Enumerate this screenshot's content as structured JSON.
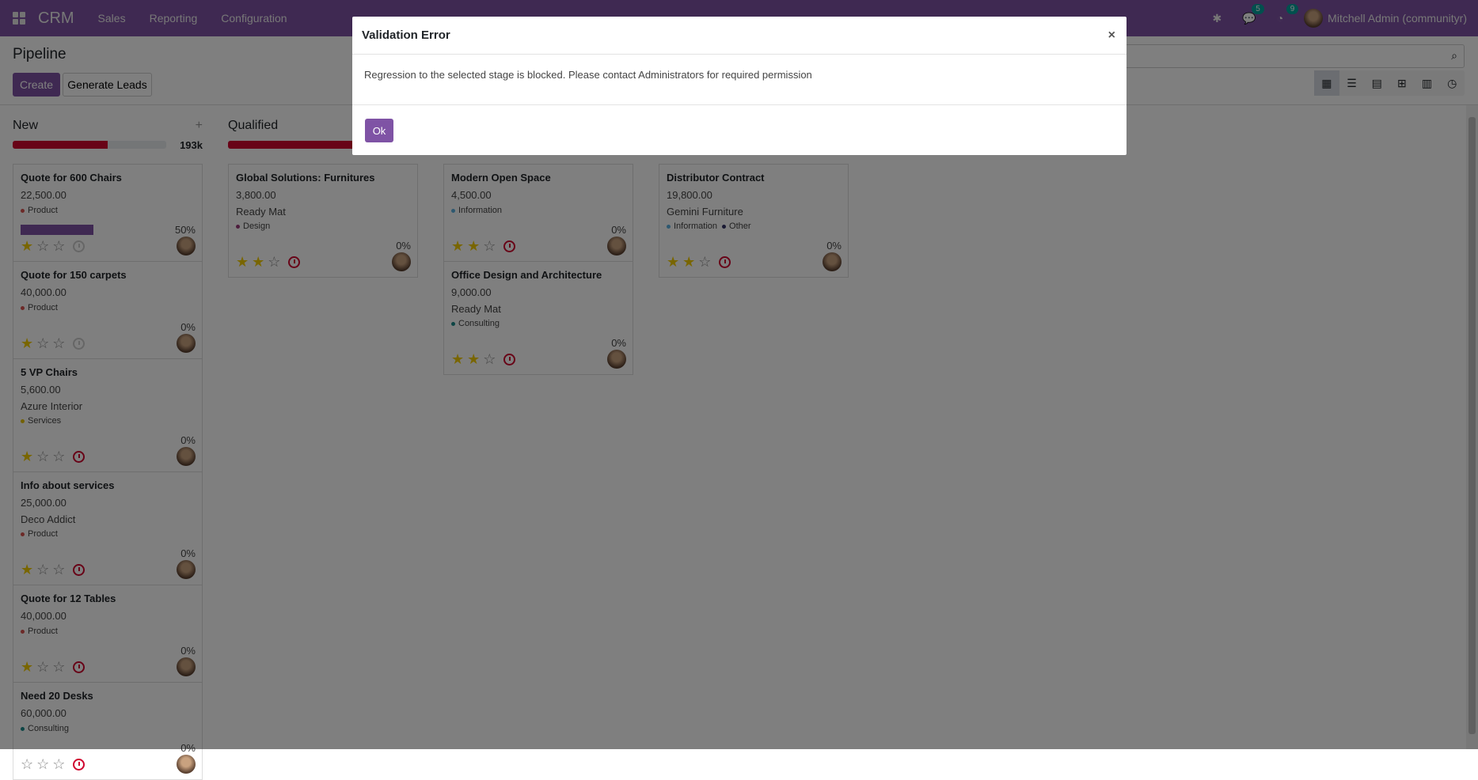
{
  "navbar": {
    "app": "CRM",
    "menus": [
      "Sales",
      "Reporting",
      "Configuration"
    ],
    "messages_count": "5",
    "activities_count": "9",
    "user": "Mitchell Admin (communityr)"
  },
  "control": {
    "title": "Pipeline",
    "create": "Create",
    "generate": "Generate Leads",
    "search_placeholder": ""
  },
  "views": [
    "kanban",
    "list",
    "calendar",
    "pivot",
    "graph",
    "activity"
  ],
  "colors": {
    "primary": "#7f53a5",
    "danger": "#d0062f",
    "star": "#f3cc00"
  },
  "columns": [
    {
      "name": "New",
      "total": "193k",
      "progress": 62,
      "cards": [
        {
          "name": "Quote for 600 Chairs",
          "amount": "22,500.00",
          "partner": "",
          "tags": [
            {
              "t": "Product",
              "c": "#d9534f"
            }
          ],
          "prob_bar": 50,
          "pct": "50%",
          "stars": 1,
          "activity": "none"
        },
        {
          "name": "Quote for 150 carpets",
          "amount": "40,000.00",
          "partner": "",
          "tags": [
            {
              "t": "Product",
              "c": "#d9534f"
            }
          ],
          "pct": "0%",
          "stars": 1,
          "activity": "none"
        },
        {
          "name": "5 VP Chairs",
          "amount": "5,600.00",
          "partner": "Azure Interior",
          "tags": [
            {
              "t": "Services",
              "c": "#e6c200"
            }
          ],
          "pct": "0%",
          "stars": 1,
          "activity": "overdue"
        },
        {
          "name": "Info about services",
          "amount": "25,000.00",
          "partner": "Deco Addict",
          "tags": [
            {
              "t": "Product",
              "c": "#d9534f"
            }
          ],
          "pct": "0%",
          "stars": 1,
          "activity": "overdue"
        },
        {
          "name": "Quote for 12 Tables",
          "amount": "40,000.00",
          "partner": "",
          "tags": [
            {
              "t": "Product",
              "c": "#d9534f"
            }
          ],
          "pct": "0%",
          "stars": 1,
          "activity": "overdue"
        },
        {
          "name": "Need 20 Desks",
          "amount": "60,000.00",
          "partner": "",
          "tags": [
            {
              "t": "Consulting",
              "c": "#1a8a8a"
            }
          ],
          "pct": "0%",
          "stars": 0,
          "activity": "overdue"
        }
      ]
    },
    {
      "name": "Qualified",
      "total": "",
      "progress": 100,
      "cards": [
        {
          "name": "Global Solutions: Furnitures",
          "amount": "3,800.00",
          "partner": "Ready Mat",
          "tags": [
            {
              "t": "Design",
              "c": "#9b3a7a"
            }
          ],
          "pct": "0%",
          "stars": 2,
          "activity": "overdue"
        }
      ]
    },
    {
      "name": "",
      "total": "",
      "progress": null,
      "cards": [
        {
          "name": "Modern Open Space",
          "amount": "4,500.00",
          "partner": "",
          "tags": [
            {
              "t": "Information",
              "c": "#5bb0e0"
            }
          ],
          "pct": "0%",
          "stars": 2,
          "activity": "overdue"
        },
        {
          "name": "Office Design and Architecture",
          "amount": "9,000.00",
          "partner": "Ready Mat",
          "tags": [
            {
              "t": "Consulting",
              "c": "#1a8a8a"
            }
          ],
          "pct": "0%",
          "stars": 2,
          "activity": "overdue"
        }
      ]
    },
    {
      "name": "",
      "total": "",
      "progress": null,
      "cards": [
        {
          "name": "Distributor Contract",
          "amount": "19,800.00",
          "partner": "Gemini Furniture",
          "tags": [
            {
              "t": "Information",
              "c": "#5bb0e0"
            },
            {
              "t": "Other",
              "c": "#333366"
            }
          ],
          "pct": "0%",
          "stars": 2,
          "activity": "overdue"
        }
      ]
    }
  ],
  "dialog": {
    "title": "Validation Error",
    "message": "Regression to the selected stage is blocked. Please contact Administrators for required permission",
    "ok": "Ok",
    "close": "×"
  }
}
